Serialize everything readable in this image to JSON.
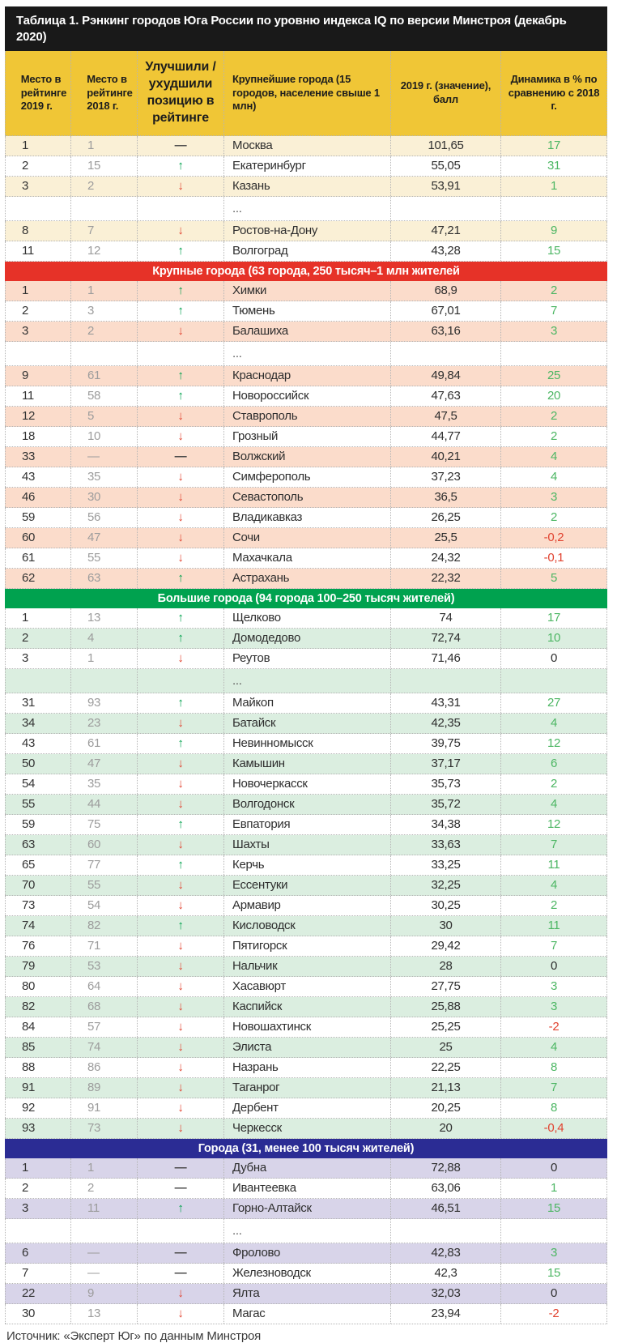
{
  "title": "Таблица 1. Рэнкинг городов Юга России по уровню индекса IQ по версии Минстроя (декабрь 2020)",
  "source": "Источник: «Эксперт Юг» по данным Минстроя",
  "colors": {
    "title_bar_bg": "#191919",
    "title_bar_text": "#FFFFFF",
    "header_bg": "#F0C636",
    "row_cream": "#FAF0D6",
    "row_pink": "#FBDCCB",
    "row_green": "#DBEEE0",
    "row_lavender": "#D8D4E9",
    "section_red": "#E63228",
    "section_green": "#00A24F",
    "section_blue": "#2B2C94",
    "arrow_up": "#00A14D",
    "arrow_down": "#E14330",
    "dash": "#4A4A4A",
    "dyn_pos": "#4CB663",
    "dyn_neg": "#E14330",
    "dyn_zero": "#2E2E2E",
    "rank2019_text": "#333333",
    "rank2018_text": "#9C9C9C",
    "city_text": "#2E2E2E",
    "score_text": "#2E2E2E",
    "ellipsis_text": "#555555",
    "border_dotted": "#B5B5B5"
  },
  "chart_data": {
    "type": "table",
    "title": "Таблица 1. Рэнкинг городов Юга России по уровню индекса IQ по версии Минстроя (декабрь 2020)",
    "columns": [
      "Место в рейтинге 2019 г.",
      "Место в рейтинге 2018 г.",
      "Улучшили / ухудшили позицию в рейтинге",
      "Крупнейшие города (15 городов, население свыше 1 млн)",
      "2019 г. (значение), балл",
      "Динамика в % по сравнению с 2018 г."
    ],
    "sections": [
      {
        "label": null,
        "header_color_key": null,
        "theme": "cream",
        "first_row_shaded": true,
        "rows": [
          {
            "r19": "1",
            "r18": "1",
            "trend": "same",
            "city": "Москва",
            "score": "101,65",
            "dyn": "17",
            "dyn_tone": "pos"
          },
          {
            "r19": "2",
            "r18": "15",
            "trend": "up",
            "city": "Екатеринбург",
            "score": "55,05",
            "dyn": "31",
            "dyn_tone": "pos"
          },
          {
            "r19": "3",
            "r18": "2",
            "trend": "down",
            "city": "Казань",
            "score": "53,91",
            "dyn": "1",
            "dyn_tone": "pos"
          },
          {
            "ellipsis": true
          },
          {
            "r19": "8",
            "r18": "7",
            "trend": "down",
            "city": "Ростов-на-Дону",
            "score": "47,21",
            "dyn": "9",
            "dyn_tone": "pos"
          },
          {
            "r19": "11",
            "r18": "12",
            "trend": "up",
            "city": "Волгоград",
            "score": "43,28",
            "dyn": "15",
            "dyn_tone": "pos"
          }
        ]
      },
      {
        "label": "Крупные города (63 города, 250 тысяч–1 млн жителей",
        "header_color_key": "section_red",
        "theme": "pink",
        "first_row_shaded": true,
        "rows": [
          {
            "r19": "1",
            "r18": "1",
            "trend": "up",
            "city": "Химки",
            "score": "68,9",
            "dyn": "2",
            "dyn_tone": "pos"
          },
          {
            "r19": "2",
            "r18": "3",
            "trend": "up",
            "city": "Тюмень",
            "score": "67,01",
            "dyn": "7",
            "dyn_tone": "pos"
          },
          {
            "r19": "3",
            "r18": "2",
            "trend": "down",
            "city": "Балашиха",
            "score": "63,16",
            "dyn": "3",
            "dyn_tone": "pos"
          },
          {
            "ellipsis": true
          },
          {
            "r19": "9",
            "r18": "61",
            "trend": "up",
            "city": "Краснодар",
            "score": "49,84",
            "dyn": "25",
            "dyn_tone": "pos"
          },
          {
            "r19": "11",
            "r18": "58",
            "trend": "up",
            "city": "Новороссийск",
            "score": "47,63",
            "dyn": "20",
            "dyn_tone": "pos"
          },
          {
            "r19": "12",
            "r18": "5",
            "trend": "down",
            "city": "Ставрополь",
            "score": "47,5",
            "dyn": "2",
            "dyn_tone": "pos"
          },
          {
            "r19": "18",
            "r18": "10",
            "trend": "down",
            "city": "Грозный",
            "score": "44,77",
            "dyn": "2",
            "dyn_tone": "pos"
          },
          {
            "r19": "33",
            "r18": "—",
            "trend": "same",
            "city": "Волжский",
            "score": "40,21",
            "dyn": "4",
            "dyn_tone": "pos"
          },
          {
            "r19": "43",
            "r18": "35",
            "trend": "down",
            "city": "Симферополь",
            "score": "37,23",
            "dyn": "4",
            "dyn_tone": "pos"
          },
          {
            "r19": "46",
            "r18": "30",
            "trend": "down",
            "city": "Севастополь",
            "score": "36,5",
            "dyn": "3",
            "dyn_tone": "pos"
          },
          {
            "r19": "59",
            "r18": "56",
            "trend": "down",
            "city": "Владикавказ",
            "score": "26,25",
            "dyn": "2",
            "dyn_tone": "pos"
          },
          {
            "r19": "60",
            "r18": "47",
            "trend": "down",
            "city": "Сочи",
            "score": "25,5",
            "dyn": "-0,2",
            "dyn_tone": "neg"
          },
          {
            "r19": "61",
            "r18": "55",
            "trend": "down",
            "city": "Махачкала",
            "score": "24,32",
            "dyn": "-0,1",
            "dyn_tone": "neg"
          },
          {
            "r19": "62",
            "r18": "63",
            "trend": "up",
            "city": "Астрахань",
            "score": "22,32",
            "dyn": "5",
            "dyn_tone": "pos"
          }
        ]
      },
      {
        "label": "Большие города (94 города 100–250 тысяч жителей)",
        "header_color_key": "section_green",
        "theme": "green",
        "first_row_shaded": false,
        "rows": [
          {
            "r19": "1",
            "r18": "13",
            "trend": "up",
            "city": "Щелково",
            "score": "74",
            "dyn": "17",
            "dyn_tone": "pos"
          },
          {
            "r19": "2",
            "r18": "4",
            "trend": "up",
            "city": "Домодедово",
            "score": "72,74",
            "dyn": "10",
            "dyn_tone": "pos"
          },
          {
            "r19": "3",
            "r18": "1",
            "trend": "down",
            "city": "Реутов",
            "score": "71,46",
            "dyn": "0",
            "dyn_tone": "zero"
          },
          {
            "ellipsis": true
          },
          {
            "r19": "31",
            "r18": "93",
            "trend": "up",
            "city": "Майкоп",
            "score": "43,31",
            "dyn": "27",
            "dyn_tone": "pos"
          },
          {
            "r19": "34",
            "r18": "23",
            "trend": "down",
            "city": "Батайск",
            "score": "42,35",
            "dyn": "4",
            "dyn_tone": "pos"
          },
          {
            "r19": "43",
            "r18": "61",
            "trend": "up",
            "city": "Невинномысск",
            "score": "39,75",
            "dyn": "12",
            "dyn_tone": "pos"
          },
          {
            "r19": "50",
            "r18": "47",
            "trend": "down",
            "city": "Камышин",
            "score": "37,17",
            "dyn": "6",
            "dyn_tone": "pos"
          },
          {
            "r19": "54",
            "r18": "35",
            "trend": "down",
            "city": "Новочеркасск",
            "score": "35,73",
            "dyn": "2",
            "dyn_tone": "pos"
          },
          {
            "r19": "55",
            "r18": "44",
            "trend": "down",
            "city": "Волгодонск",
            "score": "35,72",
            "dyn": "4",
            "dyn_tone": "pos"
          },
          {
            "r19": "59",
            "r18": "75",
            "trend": "up",
            "city": "Евпатория",
            "score": "34,38",
            "dyn": "12",
            "dyn_tone": "pos"
          },
          {
            "r19": "63",
            "r18": "60",
            "trend": "down",
            "city": "Шахты",
            "score": "33,63",
            "dyn": "7",
            "dyn_tone": "pos"
          },
          {
            "r19": "65",
            "r18": "77",
            "trend": "up",
            "city": "Керчь",
            "score": "33,25",
            "dyn": "11",
            "dyn_tone": "pos"
          },
          {
            "r19": "70",
            "r18": "55",
            "trend": "down",
            "city": "Ессентуки",
            "score": "32,25",
            "dyn": "4",
            "dyn_tone": "pos"
          },
          {
            "r19": "73",
            "r18": "54",
            "trend": "down",
            "city": "Армавир",
            "score": "30,25",
            "dyn": "2",
            "dyn_tone": "pos"
          },
          {
            "r19": "74",
            "r18": "82",
            "trend": "up",
            "city": "Кисловодск",
            "score": "30",
            "dyn": "11",
            "dyn_tone": "pos"
          },
          {
            "r19": "76",
            "r18": "71",
            "trend": "down",
            "city": "Пятигорск",
            "score": "29,42",
            "dyn": "7",
            "dyn_tone": "pos"
          },
          {
            "r19": "79",
            "r18": "53",
            "trend": "down",
            "city": "Нальчик",
            "score": "28",
            "dyn": "0",
            "dyn_tone": "zero"
          },
          {
            "r19": "80",
            "r18": "64",
            "trend": "down",
            "city": "Хасавюрт",
            "score": "27,75",
            "dyn": "3",
            "dyn_tone": "pos"
          },
          {
            "r19": "82",
            "r18": "68",
            "trend": "down",
            "city": "Каспийск",
            "score": "25,88",
            "dyn": "3",
            "dyn_tone": "pos"
          },
          {
            "r19": "84",
            "r18": "57",
            "trend": "down",
            "city": "Новошахтинск",
            "score": "25,25",
            "dyn": "-2",
            "dyn_tone": "neg"
          },
          {
            "r19": "85",
            "r18": "74",
            "trend": "down",
            "city": "Элиста",
            "score": "25",
            "dyn": "4",
            "dyn_tone": "pos"
          },
          {
            "r19": "88",
            "r18": "86",
            "trend": "down",
            "city": "Назрань",
            "score": "22,25",
            "dyn": "8",
            "dyn_tone": "pos"
          },
          {
            "r19": "91",
            "r18": "89",
            "trend": "down",
            "city": "Таганрог",
            "score": "21,13",
            "dyn": "7",
            "dyn_tone": "pos"
          },
          {
            "r19": "92",
            "r18": "91",
            "trend": "down",
            "city": "Дербент",
            "score": "20,25",
            "dyn": "8",
            "dyn_tone": "pos"
          },
          {
            "r19": "93",
            "r18": "73",
            "trend": "down",
            "city": "Черкесск",
            "score": "20",
            "dyn": "-0,4",
            "dyn_tone": "neg"
          }
        ]
      },
      {
        "label": "Города (31, менее 100 тысяч жителей)",
        "header_color_key": "section_blue",
        "theme": "lavender",
        "first_row_shaded": true,
        "rows": [
          {
            "r19": "1",
            "r18": "1",
            "trend": "same",
            "city": "Дубна",
            "score": "72,88",
            "dyn": "0",
            "dyn_tone": "zero"
          },
          {
            "r19": "2",
            "r18": "2",
            "trend": "same",
            "city": "Ивантеевка",
            "score": "63,06",
            "dyn": "1",
            "dyn_tone": "pos"
          },
          {
            "r19": "3",
            "r18": "11",
            "trend": "up",
            "city": "Горно-Алтайск",
            "score": "46,51",
            "dyn": "15",
            "dyn_tone": "pos"
          },
          {
            "ellipsis": true
          },
          {
            "r19": "6",
            "r18": "—",
            "trend": "same",
            "city": "Фролово",
            "score": "42,83",
            "dyn": "3",
            "dyn_tone": "pos"
          },
          {
            "r19": "7",
            "r18": "—",
            "trend": "same",
            "city": "Железноводск",
            "score": "42,3",
            "dyn": "15",
            "dyn_tone": "pos"
          },
          {
            "r19": "22",
            "r18": "9",
            "trend": "down",
            "city": "Ялта",
            "score": "32,03",
            "dyn": "0",
            "dyn_tone": "zero"
          },
          {
            "r19": "30",
            "r18": "13",
            "trend": "down",
            "city": "Магас",
            "score": "23,94",
            "dyn": "-2",
            "dyn_tone": "neg"
          }
        ]
      }
    ]
  }
}
